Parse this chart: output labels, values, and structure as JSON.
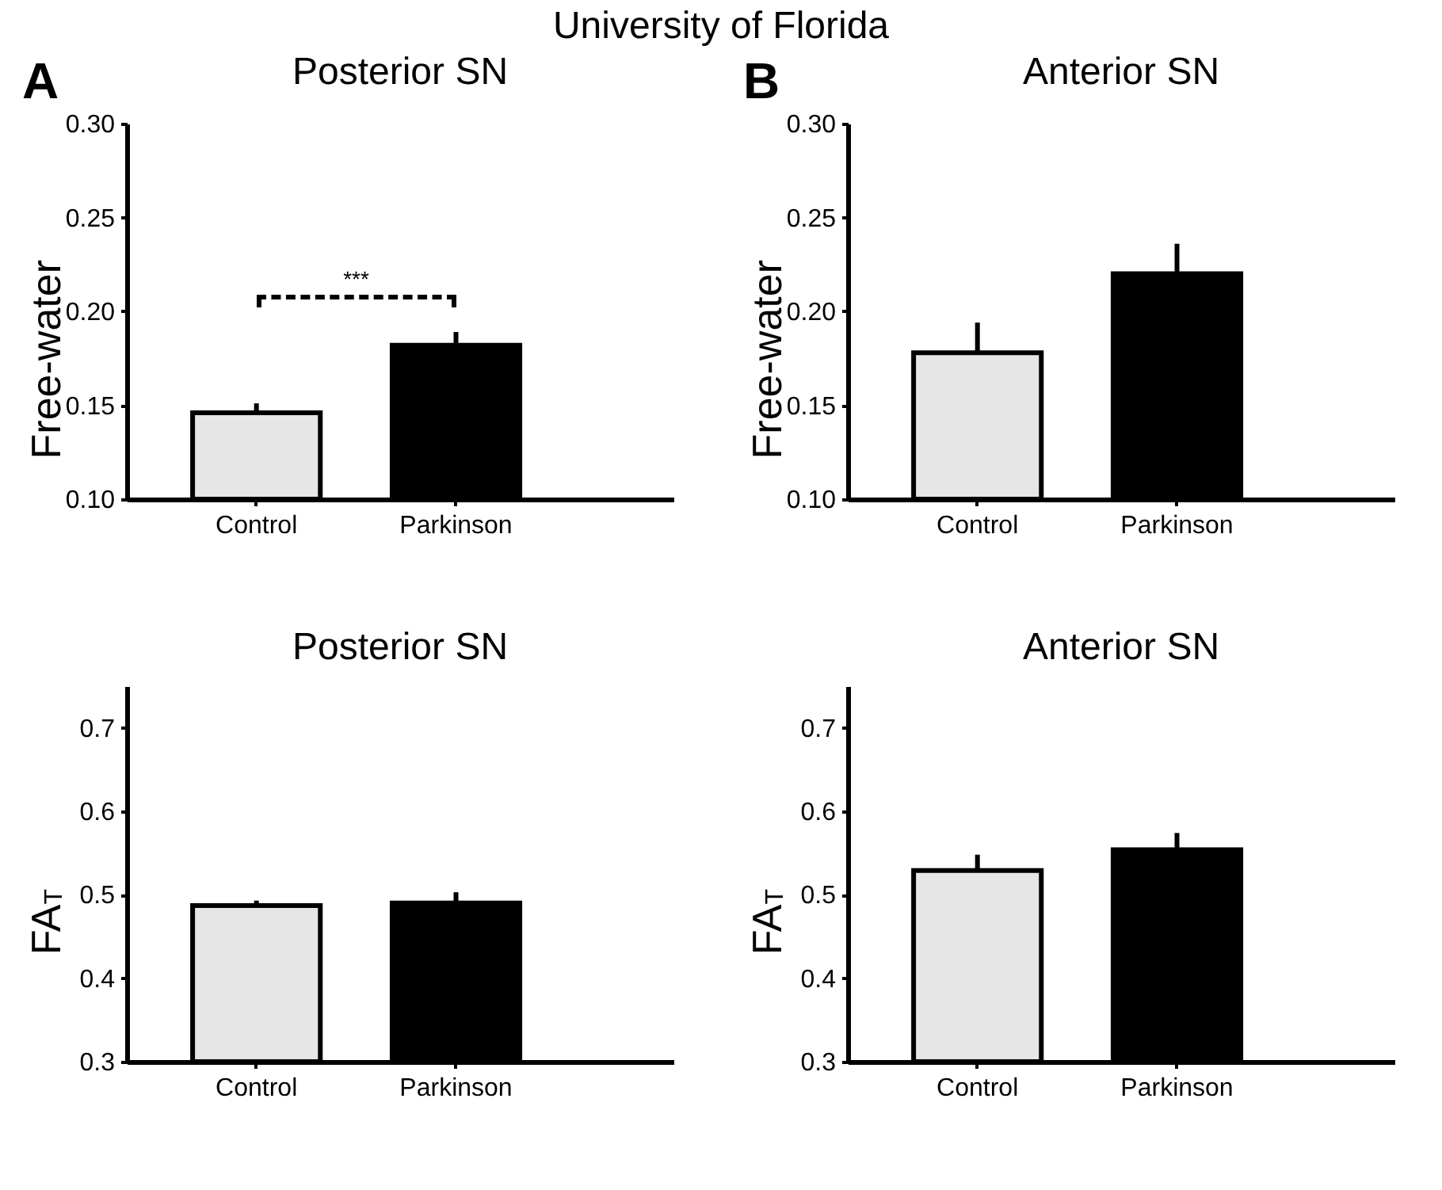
{
  "chart_data": [
    {
      "type": "bar",
      "title": "Posterior SN",
      "ylabel": "Free-water",
      "categories": [
        "Control",
        "Parkinson"
      ],
      "values": [
        0.146,
        0.182
      ],
      "errors": [
        0.005,
        0.007
      ],
      "colors": [
        "#e6e6e6",
        "#000000"
      ],
      "ylim": [
        0.1,
        0.3
      ],
      "yticks": [
        {
          "value": 0.1,
          "label": "0.10"
        },
        {
          "value": 0.15,
          "label": "0.15"
        },
        {
          "value": 0.2,
          "label": "0.20"
        },
        {
          "value": 0.25,
          "label": "0.25"
        },
        {
          "value": 0.3,
          "label": "0.30"
        }
      ],
      "grid": false,
      "legend": false,
      "annotations": [
        "University of Florida",
        "A",
        "***"
      ]
    },
    {
      "type": "bar",
      "title": "Anterior SN",
      "ylabel": "Free-water",
      "categories": [
        "Control",
        "Parkinson"
      ],
      "values": [
        0.178,
        0.22
      ],
      "errors": [
        0.016,
        0.016
      ],
      "colors": [
        "#e6e6e6",
        "#000000"
      ],
      "ylim": [
        0.1,
        0.3
      ],
      "yticks": [
        {
          "value": 0.1,
          "label": "0.10"
        },
        {
          "value": 0.15,
          "label": "0.15"
        },
        {
          "value": 0.2,
          "label": "0.20"
        },
        {
          "value": 0.25,
          "label": "0.25"
        },
        {
          "value": 0.3,
          "label": "0.30"
        }
      ],
      "grid": false,
      "legend": false,
      "annotations": [
        "B"
      ]
    },
    {
      "type": "bar",
      "title": "Posterior SN",
      "ylabel": "FA$_{T}$",
      "categories": [
        "Control",
        "Parkinson"
      ],
      "values": [
        0.487,
        0.49
      ],
      "errors": [
        0.006,
        0.013
      ],
      "colors": [
        "#e6e6e6",
        "#000000"
      ],
      "ylim": [
        0.3,
        0.75
      ],
      "yticks": [
        0.3,
        0.4,
        0.5,
        0.6,
        0.7
      ],
      "grid": false,
      "legend": false
    },
    {
      "type": "bar",
      "title": "Anterior SN",
      "ylabel": "FA$_{T}$",
      "categories": [
        "Control",
        "Parkinson"
      ],
      "values": [
        0.529,
        0.554
      ],
      "errors": [
        0.019,
        0.02
      ],
      "colors": [
        "#e6e6e6",
        "#000000"
      ],
      "ylim": [
        0.3,
        0.75
      ],
      "yticks": [
        0.3,
        0.4,
        0.5,
        0.6,
        0.7
      ],
      "grid": false,
      "legend": false
    }
  ]
}
